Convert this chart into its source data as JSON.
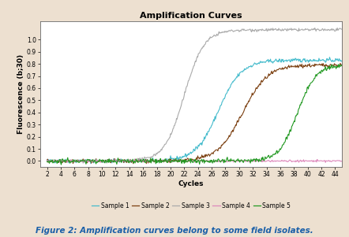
{
  "title": "Amplification Curves",
  "xlabel": "Cycles",
  "ylabel": "Fluorescence (b;30)",
  "background_color": "#ede0d0",
  "plot_bg_color": "#ffffff",
  "xlim": [
    1,
    45
  ],
  "ylim": [
    -0.05,
    1.15
  ],
  "xticks": [
    2,
    4,
    6,
    8,
    10,
    12,
    14,
    16,
    18,
    20,
    22,
    24,
    26,
    28,
    30,
    32,
    34,
    36,
    38,
    40,
    42,
    44
  ],
  "yticks": [
    0,
    0.1,
    0.2,
    0.3,
    0.4,
    0.5,
    0.6,
    0.7,
    0.8,
    0.9,
    1
  ],
  "samples": {
    "Sample 1": {
      "color": "#44bbcc",
      "midpoint": 27,
      "steepness": 0.6,
      "max": 0.83,
      "noise": 0.008
    },
    "Sample 2": {
      "color": "#7b3f10",
      "midpoint": 30.5,
      "steepness": 0.55,
      "max": 0.79,
      "noise": 0.008
    },
    "Sample 3": {
      "color": "#aaaaaa",
      "midpoint": 22,
      "steepness": 0.7,
      "max": 1.08,
      "noise": 0.006
    },
    "Sample 4": {
      "color": "#dd88bb",
      "midpoint": 80,
      "steepness": 0.3,
      "max": 0.018,
      "noise": 0.004
    },
    "Sample 5": {
      "color": "#229922",
      "midpoint": 38.5,
      "steepness": 0.75,
      "max": 0.79,
      "noise": 0.01
    }
  },
  "legend_labels": [
    "Sample 1",
    "Sample 2",
    "Sample 3",
    "Sample 4",
    "Sample 5"
  ],
  "figure_caption": "Figure 2: Amplification curves belong to some field isolates.",
  "title_fontsize": 8,
  "label_fontsize": 6.5,
  "tick_fontsize": 5.5,
  "legend_fontsize": 5.5,
  "caption_fontsize": 7.5,
  "caption_color": "#1a5fa8"
}
